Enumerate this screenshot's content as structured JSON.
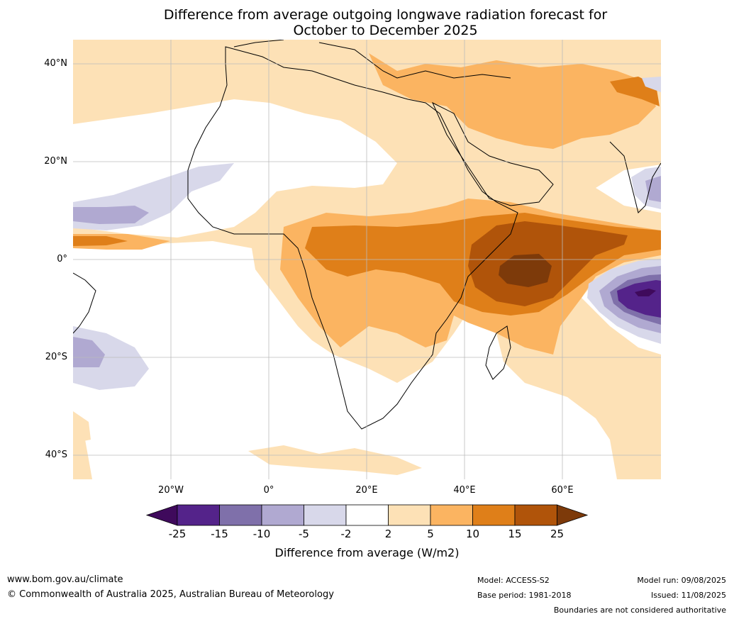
{
  "title_line1": "Difference from average outgoing longwave radiation forecast for",
  "title_line2": "October to December 2025",
  "lat_ticks": [
    "40°N",
    "20°N",
    "0°",
    "20°S",
    "40°S"
  ],
  "lon_ticks": [
    "20°W",
    "0°",
    "20°E",
    "40°E",
    "60°E"
  ],
  "colorbar": {
    "labels": [
      "-25",
      "-15",
      "-10",
      "-5",
      "-2",
      "2",
      "5",
      "10",
      "15",
      "25"
    ],
    "colors": [
      "#3f0a5c",
      "#54238a",
      "#7f70aa",
      "#b0a9d1",
      "#d8d8ea",
      "#ffffff",
      "#fde1b6",
      "#fbb461",
      "#df7f19",
      "#b0540a",
      "#7d3a0a"
    ],
    "title": "Difference from average (W/m2)"
  },
  "footer": {
    "url": "www.bom.gov.au/climate",
    "copyright": "© Commonwealth of Australia 2025, Australian Bureau of Meteorology",
    "model": "Model: ACCESS-S2",
    "base_period": "Base period: 1981-2018",
    "model_run": "Model run: 09/08/2025",
    "issued": "Issued: 11/08/2025",
    "disclaimer": "Boundaries are not considered authoritative"
  }
}
